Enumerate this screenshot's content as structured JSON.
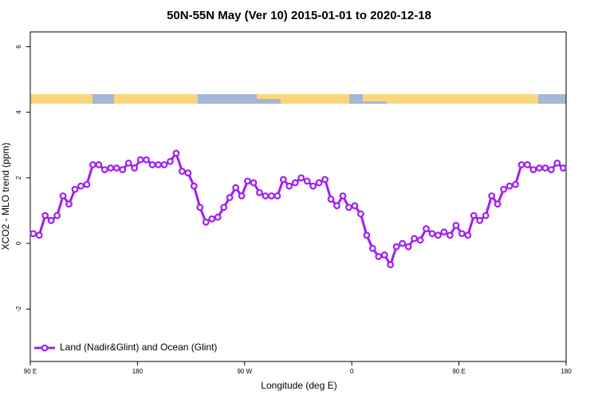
{
  "chart_data": {
    "type": "line",
    "title": "50N-55N May (Ver 10)   2015-01-01 to 2020-12-18",
    "xlabel": "Longitude (deg E)",
    "ylabel": "XCO2 - MLO trend (ppm)",
    "x": [
      92.5,
      97.5,
      102.5,
      107.5,
      112.5,
      117.5,
      122.5,
      127.5,
      132.5,
      137.5,
      142.5,
      147.5,
      152.5,
      157.5,
      162.5,
      167.5,
      172.5,
      177.5,
      182.5,
      187.5,
      192.5,
      197.5,
      202.5,
      207.5,
      212.5,
      217.5,
      222.5,
      227.5,
      232.5,
      237.5,
      242.5,
      247.5,
      252.5,
      257.5,
      262.5,
      267.5,
      272.5,
      277.5,
      282.5,
      287.5,
      292.5,
      297.5,
      302.5,
      307.5,
      312.5,
      317.5,
      322.5,
      327.5,
      332.5,
      337.5,
      342.5,
      347.5,
      352.5,
      357.5,
      362.5,
      367.5,
      372.5,
      377.5,
      382.5,
      387.5,
      392.5,
      397.5,
      402.5,
      407.5,
      412.5,
      417.5,
      422.5,
      427.5,
      432.5,
      437.5,
      442.5,
      447.5,
      452.5,
      457.5,
      462.5,
      467.5,
      472.5,
      477.5,
      482.5,
      487.5,
      492.5,
      497.5,
      502.5,
      507.5,
      512.5,
      517.5,
      522.5,
      527.5,
      532.5,
      537.5
    ],
    "series": [
      {
        "name": "Land (Nadir&Glint) and Ocean (Glint)",
        "color": "#a020f0",
        "values": [
          0.3,
          0.25,
          0.85,
          0.7,
          0.85,
          1.45,
          1.2,
          1.65,
          1.75,
          1.8,
          2.4,
          2.4,
          2.25,
          2.3,
          2.3,
          2.25,
          2.45,
          2.3,
          2.55,
          2.55,
          2.4,
          2.4,
          2.4,
          2.5,
          2.75,
          2.2,
          2.15,
          1.75,
          1.1,
          0.65,
          0.75,
          0.8,
          1.1,
          1.4,
          1.7,
          1.45,
          1.9,
          1.85,
          1.55,
          1.45,
          1.45,
          1.45,
          1.95,
          1.75,
          1.85,
          2.0,
          1.9,
          1.75,
          1.85,
          1.95,
          1.35,
          1.15,
          1.45,
          1.1,
          1.15,
          0.9,
          0.25,
          -0.15,
          -0.4,
          -0.35,
          -0.65,
          -0.1,
          0.0,
          -0.1,
          0.15,
          0.1,
          0.45,
          0.3,
          0.25,
          0.35,
          0.25,
          0.55,
          0.3,
          0.25,
          0.85,
          0.7,
          0.85,
          1.45,
          1.2,
          1.65,
          1.75,
          1.8,
          2.4,
          2.4,
          2.25,
          2.3,
          2.3,
          2.25,
          2.45,
          2.3
        ]
      }
    ],
    "xlim": [
      90,
      540
    ],
    "xticks": [
      {
        "value": 90,
        "label": "90 E"
      },
      180,
      {
        "value": 270,
        "label": "90 W"
      },
      {
        "value": 360,
        "label": "0"
      },
      {
        "value": 450,
        "label": "90 E"
      },
      {
        "value": 540,
        "label": "180"
      }
    ],
    "ylim": [
      -3.6,
      6.45
    ],
    "yticks": [
      -2,
      0,
      2,
      4,
      6
    ],
    "legend": "bottom-left"
  }
}
